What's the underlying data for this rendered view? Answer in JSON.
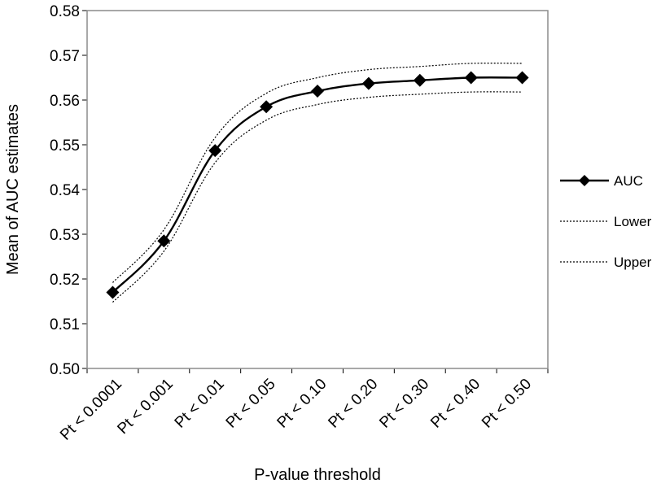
{
  "chart_data": {
    "type": "line",
    "title": "",
    "xlabel": "P-value threshold",
    "ylabel": "Mean of AUC estimates",
    "categories": [
      "Pt < 0.0001",
      "Pt < 0.001",
      "Pt < 0.01",
      "Pt < 0.05",
      "Pt < 0.10",
      "Pt < 0.20",
      "Pt < 0.30",
      "Pt < 0.40",
      "Pt < 0.50"
    ],
    "ylim": [
      0.5,
      0.58
    ],
    "yticks": [
      "0.50",
      "0.51",
      "0.52",
      "0.53",
      "0.54",
      "0.55",
      "0.56",
      "0.57",
      "0.58"
    ],
    "grid": false,
    "legend_position": "right",
    "series": [
      {
        "name": "AUC",
        "values": [
          0.517,
          0.5285,
          0.5487,
          0.5585,
          0.562,
          0.5637,
          0.5644,
          0.565,
          0.565
        ],
        "style": "solid",
        "marker": "diamond",
        "color": "#000000"
      },
      {
        "name": "Lower",
        "values": [
          0.5148,
          0.5262,
          0.546,
          0.5555,
          0.559,
          0.5606,
          0.5613,
          0.5618,
          0.5618
        ],
        "style": "dotted",
        "marker": "none",
        "color": "#000000"
      },
      {
        "name": "Upper",
        "values": [
          0.5192,
          0.531,
          0.5516,
          0.5615,
          0.565,
          0.5668,
          0.5675,
          0.5682,
          0.5682
        ],
        "style": "dotted",
        "marker": "none",
        "color": "#000000"
      }
    ]
  }
}
